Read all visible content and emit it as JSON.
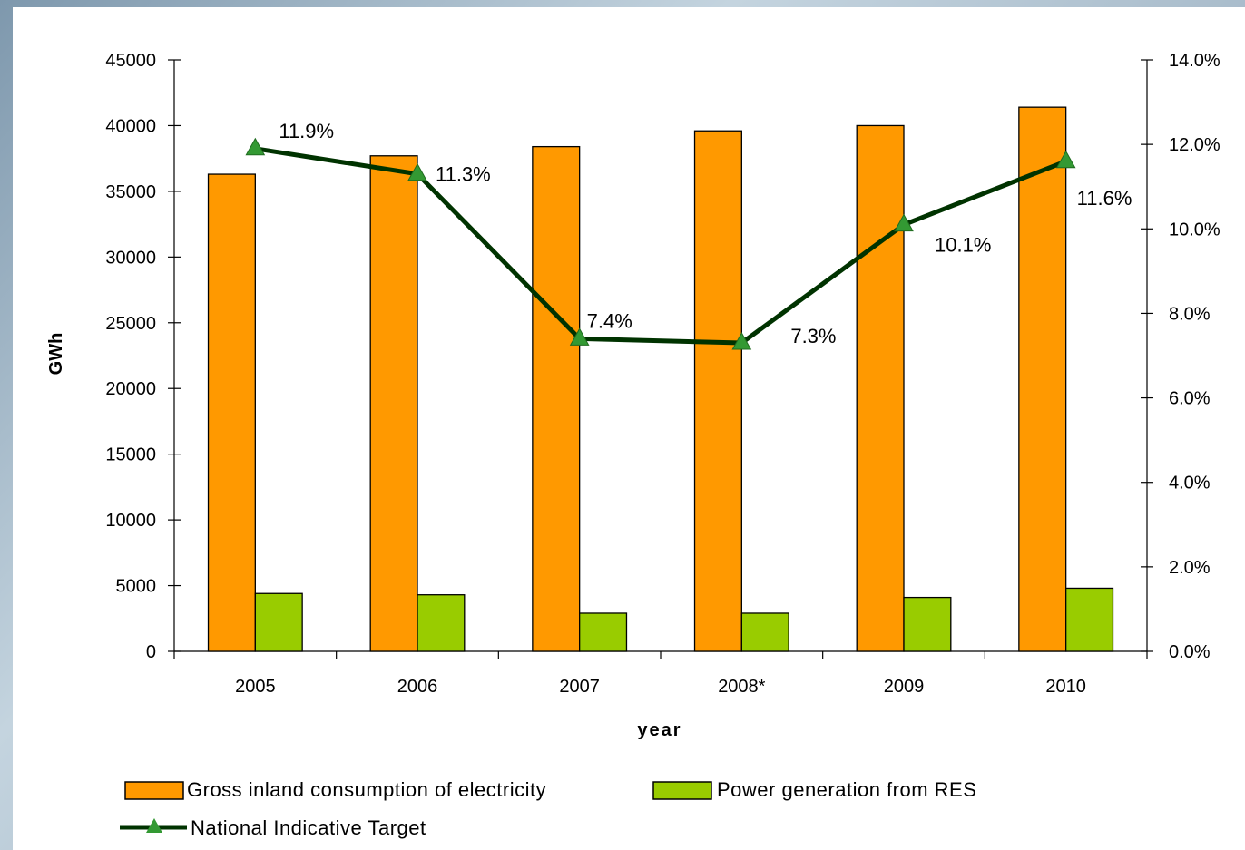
{
  "chart_data": {
    "type": "bar",
    "categories": [
      "2005",
      "2006",
      "2007",
      "2008*",
      "2009",
      "2010"
    ],
    "series": [
      {
        "name": "Gross inland consumption of electricity",
        "type": "bar",
        "axis": "left",
        "color": "#FF9900",
        "values": [
          36300,
          37700,
          38400,
          39600,
          40000,
          41400
        ]
      },
      {
        "name": "Power generation from RES",
        "type": "bar",
        "axis": "left",
        "color": "#99CC00",
        "values": [
          4400,
          4300,
          2900,
          2900,
          4100,
          4800
        ]
      },
      {
        "name": "National Indicative Target",
        "type": "line",
        "axis": "right",
        "color": "#003300",
        "marker_color": "#339933",
        "values": [
          11.9,
          11.3,
          7.4,
          7.3,
          10.1,
          11.6
        ],
        "labels": [
          "11.9%",
          "11.3%",
          "7.4%",
          "7.3%",
          "10.1%",
          "11.6%"
        ]
      }
    ],
    "xlabel": "year",
    "ylabel": "GWh",
    "ylim": [
      0,
      45000
    ],
    "yticks": [
      "0",
      "5000",
      "10000",
      "15000",
      "20000",
      "25000",
      "30000",
      "35000",
      "40000",
      "45000"
    ],
    "y2lim": [
      0,
      14
    ],
    "y2ticks": [
      "0.0%",
      "2.0%",
      "4.0%",
      "6.0%",
      "8.0%",
      "10.0%",
      "12.0%",
      "14.0%"
    ],
    "grid": false,
    "legend_position": "bottom"
  }
}
